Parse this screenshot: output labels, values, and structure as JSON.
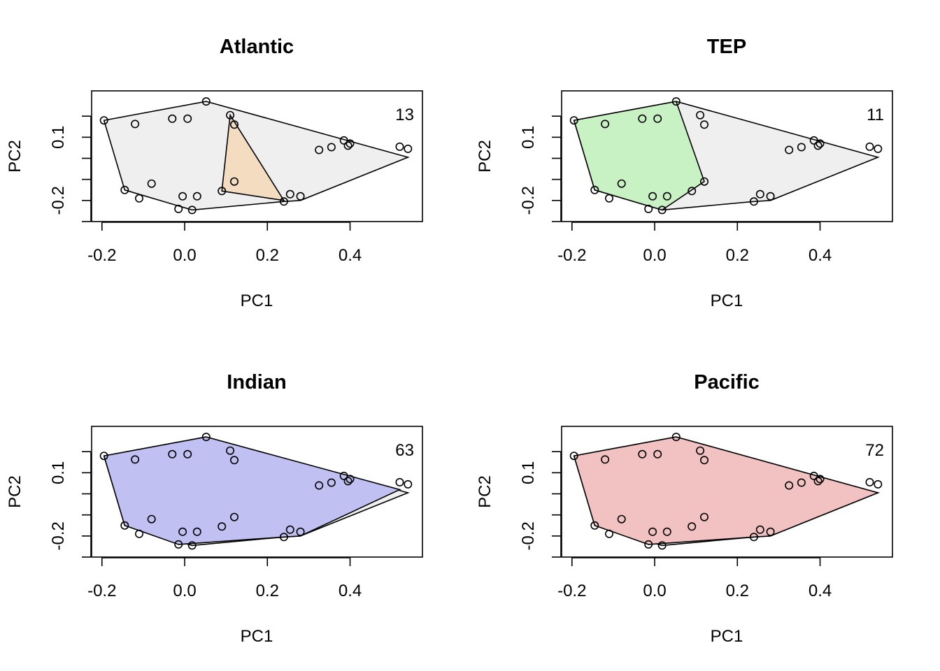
{
  "chart_data": [
    {
      "type": "scatter",
      "title": "Atlantic",
      "xlabel": "PC1",
      "ylabel": "PC2",
      "count": "13",
      "highlight_color": "#f4dcc0",
      "highlight_hull": [
        [
          0.11,
          0.205
        ],
        [
          0.24,
          -0.2
        ],
        [
          0.09,
          -0.155
        ]
      ]
    },
    {
      "type": "scatter",
      "title": "TEP",
      "xlabel": "PC1",
      "ylabel": "PC2",
      "count": "11",
      "highlight_color": "#c8f2c4",
      "highlight_hull": [
        [
          0.052,
          0.27
        ],
        [
          0.12,
          -0.11
        ],
        [
          0.018,
          -0.245
        ],
        [
          -0.145,
          -0.15
        ],
        [
          -0.195,
          0.18
        ]
      ]
    },
    {
      "type": "scatter",
      "title": "Indian",
      "xlabel": "PC1",
      "ylabel": "PC2",
      "count": "63",
      "highlight_color": "#c0c0f2",
      "highlight_hull": [
        [
          0.052,
          0.27
        ],
        [
          0.52,
          0.02
        ],
        [
          0.28,
          -0.2
        ],
        [
          0.24,
          -0.205
        ],
        [
          -0.015,
          -0.24
        ],
        [
          -0.145,
          -0.15
        ],
        [
          -0.195,
          0.18
        ]
      ]
    },
    {
      "type": "scatter",
      "title": "Pacific",
      "xlabel": "PC1",
      "ylabel": "PC2",
      "count": "72",
      "highlight_color": "#f2c2c2",
      "highlight_hull": [
        [
          0.052,
          0.27
        ],
        [
          0.54,
          0.005
        ],
        [
          0.28,
          -0.2
        ],
        [
          0.24,
          -0.205
        ],
        [
          -0.015,
          -0.24
        ],
        [
          -0.145,
          -0.15
        ],
        [
          -0.195,
          0.18
        ]
      ]
    }
  ],
  "shared": {
    "xlim": [
      -0.225,
      0.575
    ],
    "ylim": [
      -0.3,
      0.32
    ],
    "xticks": [
      -0.2,
      0.0,
      0.2,
      0.4
    ],
    "xticklabels": [
      "-0.2",
      "0.0",
      "0.2",
      "0.4"
    ],
    "yticks": [
      0.2,
      0.1,
      0.0,
      -0.1,
      -0.2,
      -0.3
    ],
    "yticklabels": [
      "",
      "0.1",
      "",
      "",
      "-0.2",
      ""
    ],
    "all_hull_color": "#efefef",
    "all_hull": [
      [
        0.052,
        0.27
      ],
      [
        0.54,
        0.005
      ],
      [
        0.28,
        -0.2
      ],
      [
        0.24,
        -0.205
      ],
      [
        0.018,
        -0.245
      ],
      [
        -0.145,
        -0.15
      ],
      [
        -0.195,
        0.18
      ]
    ],
    "points": [
      [
        -0.195,
        0.18
      ],
      [
        -0.12,
        0.163
      ],
      [
        -0.03,
        0.188
      ],
      [
        0.007,
        0.188
      ],
      [
        0.052,
        0.27
      ],
      [
        0.11,
        0.205
      ],
      [
        0.12,
        0.16
      ],
      [
        -0.145,
        -0.15
      ],
      [
        -0.11,
        -0.19
      ],
      [
        -0.08,
        -0.12
      ],
      [
        -0.015,
        -0.24
      ],
      [
        -0.005,
        -0.18
      ],
      [
        0.03,
        -0.18
      ],
      [
        0.09,
        -0.155
      ],
      [
        0.12,
        -0.11
      ],
      [
        0.24,
        -0.205
      ],
      [
        0.255,
        -0.17
      ],
      [
        0.28,
        -0.18
      ],
      [
        0.018,
        -0.245
      ],
      [
        0.325,
        0.04
      ],
      [
        0.355,
        0.053
      ],
      [
        0.385,
        0.085
      ],
      [
        0.395,
        0.06
      ],
      [
        0.4,
        0.07
      ],
      [
        0.52,
        0.055
      ],
      [
        0.54,
        0.045
      ]
    ]
  }
}
